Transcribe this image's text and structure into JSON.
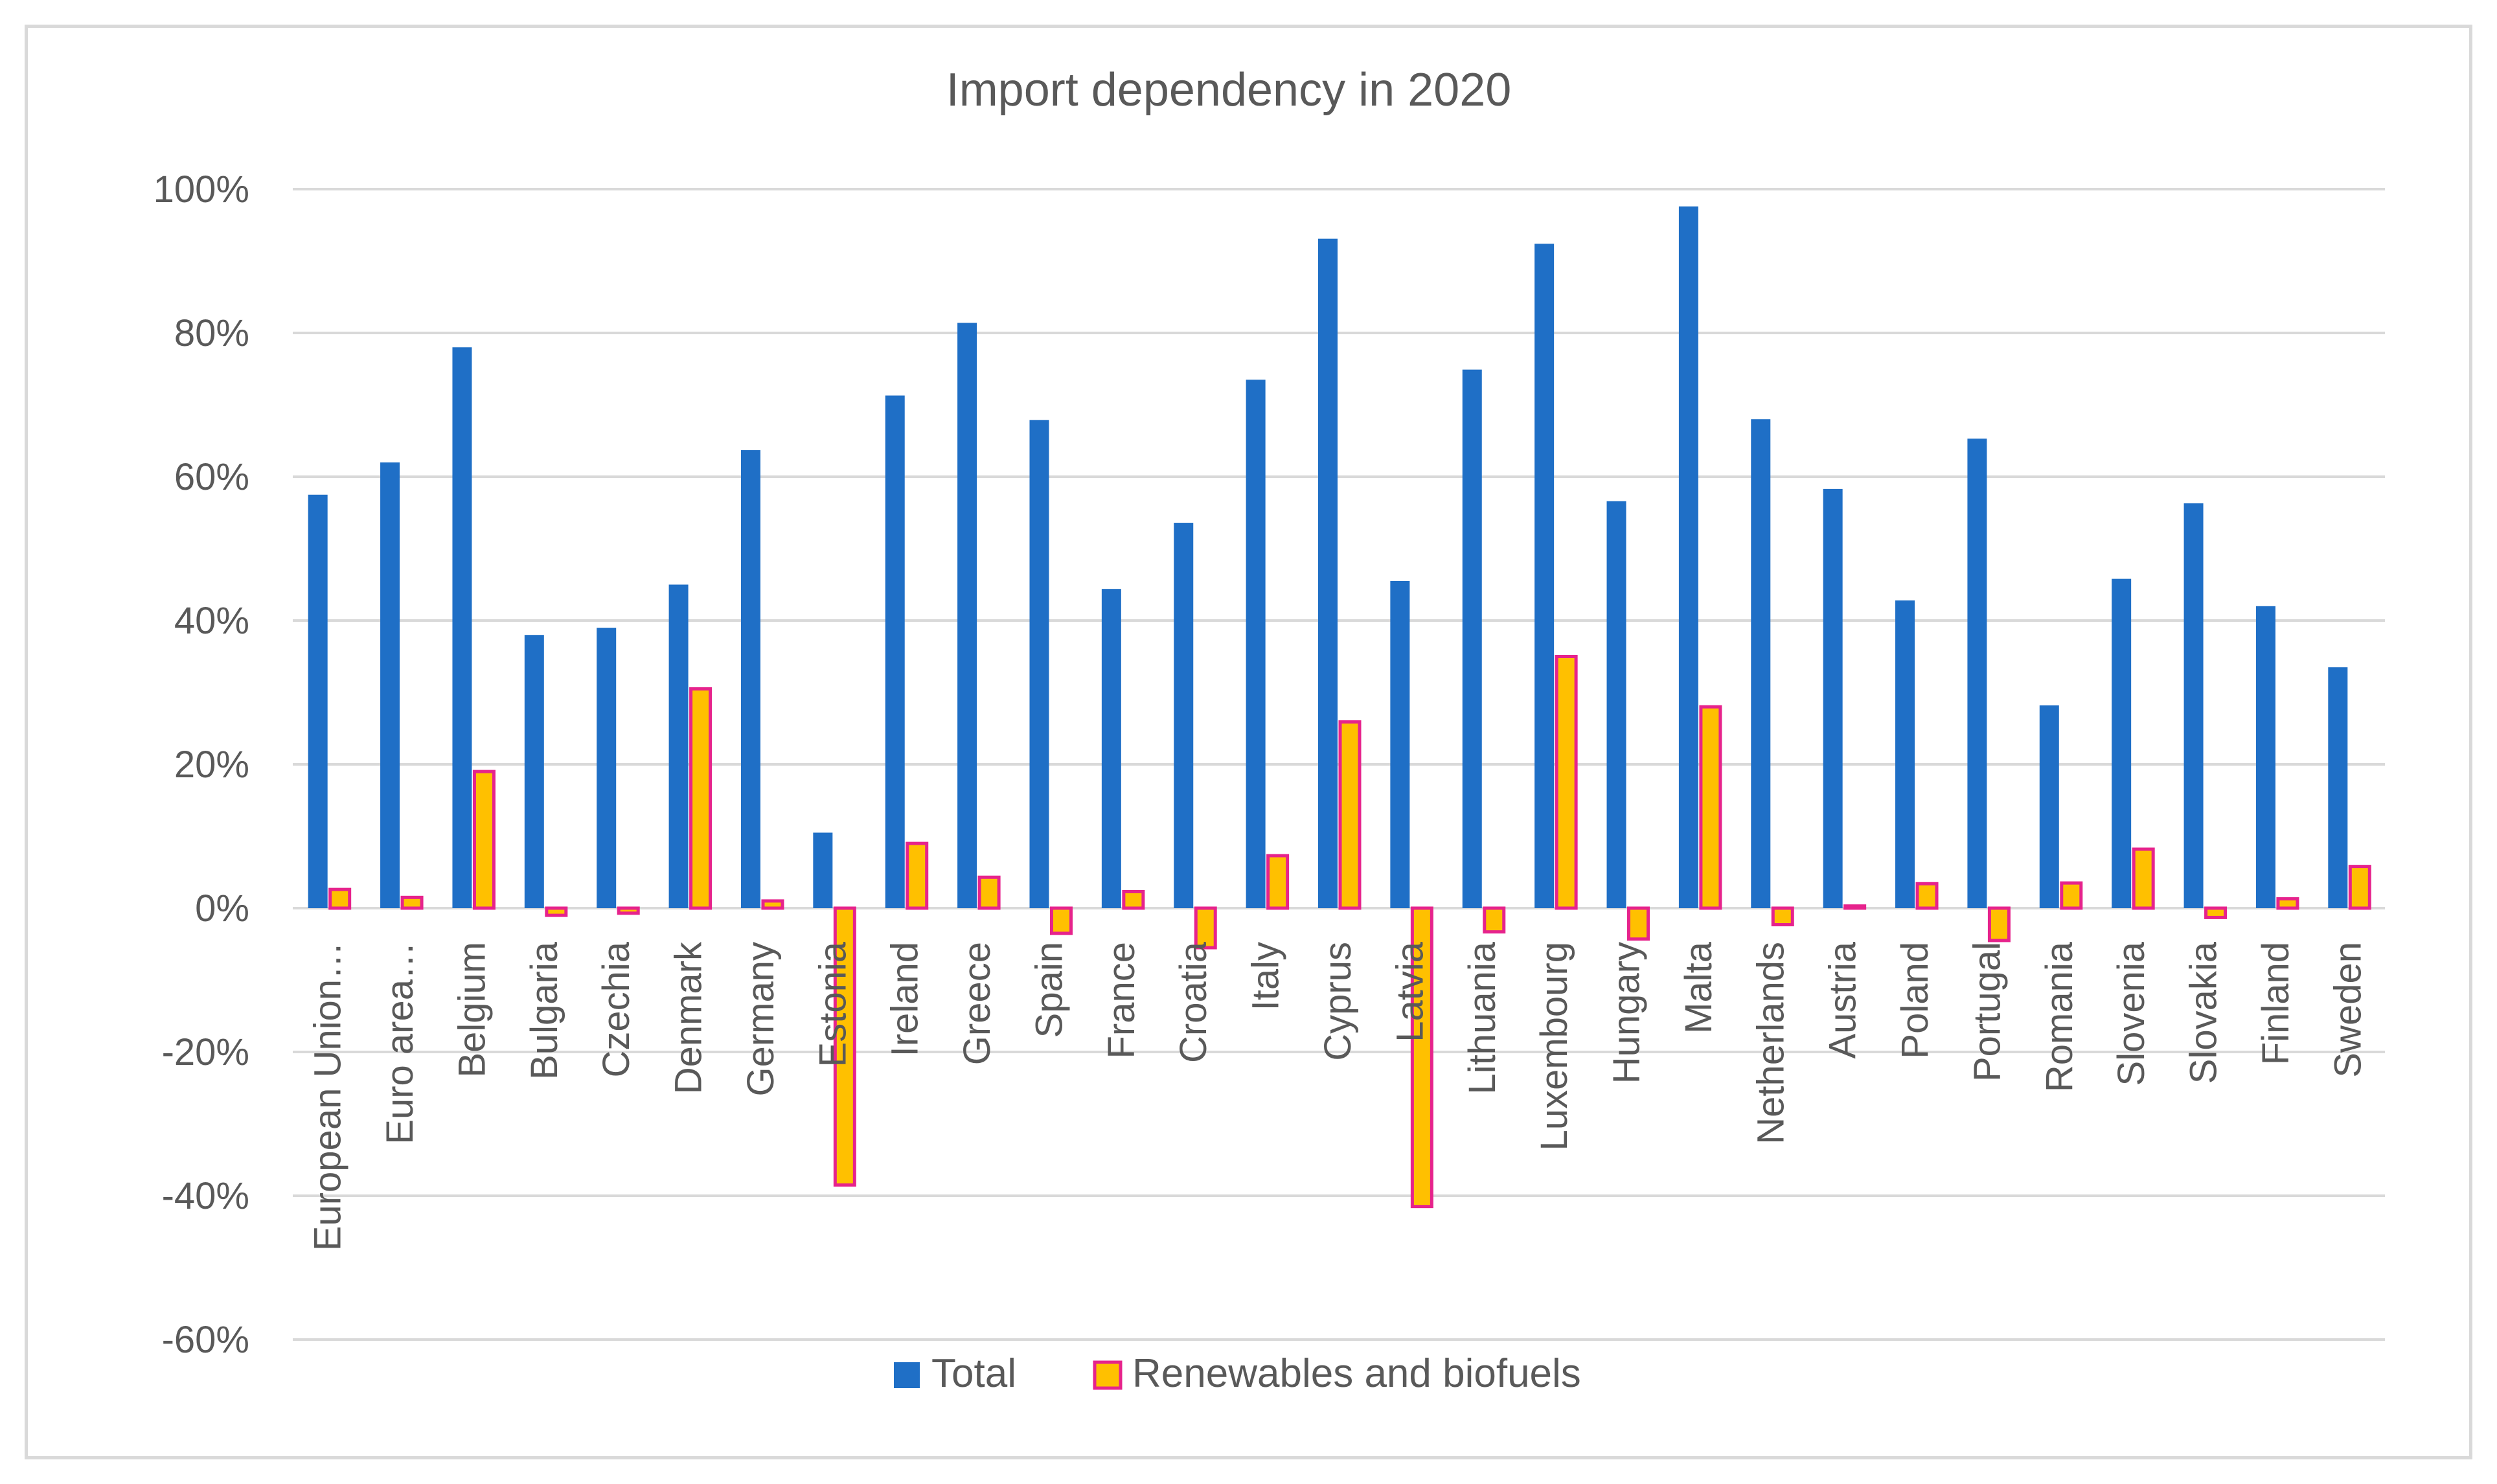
{
  "chart_data": {
    "type": "bar",
    "title": "Import dependency in 2020",
    "xlabel": "",
    "ylabel": "",
    "ylim": [
      -60,
      100
    ],
    "yticks": [
      100,
      80,
      60,
      40,
      20,
      0,
      -20,
      -40,
      -60
    ],
    "ytick_labels": [
      "100%",
      "80%",
      "60%",
      "40%",
      "20%",
      "0%",
      "-20%",
      "-40%",
      "-60%"
    ],
    "grid": true,
    "legend_position": "bottom",
    "categories": [
      "European Union…",
      "Euro area…",
      "Belgium",
      "Bulgaria",
      "Czechia",
      "Denmark",
      "Germany",
      "Estonia",
      "Ireland",
      "Greece",
      "Spain",
      "France",
      "Croatia",
      "Italy",
      "Cyprus",
      "Latvia",
      "Lithuania",
      "Luxembourg",
      "Hungary",
      "Malta",
      "Netherlands",
      "Austria",
      "Poland",
      "Portugal",
      "Romania",
      "Slovenia",
      "Slovakia",
      "Finland",
      "Sweden"
    ],
    "series": [
      {
        "name": "Total",
        "color": "#1f6fc6",
        "border": "#1f6fc6",
        "values": [
          57.5,
          62.0,
          78.0,
          38.0,
          39.0,
          45.0,
          63.7,
          10.5,
          71.3,
          81.4,
          67.9,
          44.4,
          53.6,
          73.5,
          93.1,
          45.5,
          74.9,
          92.4,
          56.6,
          97.6,
          68.0,
          58.3,
          42.8,
          65.3,
          28.2,
          45.8,
          56.3,
          42.0,
          33.5
        ]
      },
      {
        "name": "Renewables and biofuels",
        "color": "#ffc000",
        "border": "#e6238c",
        "values": [
          2.6,
          1.5,
          19.0,
          -1.0,
          -0.7,
          30.5,
          1.0,
          -38.5,
          9.0,
          4.3,
          -3.5,
          2.3,
          -5.5,
          7.3,
          25.9,
          -41.5,
          -3.3,
          35.0,
          -4.3,
          28.0,
          -2.3,
          0.3,
          3.4,
          -4.5,
          3.5,
          8.2,
          -1.3,
          1.3,
          5.8
        ]
      }
    ]
  }
}
